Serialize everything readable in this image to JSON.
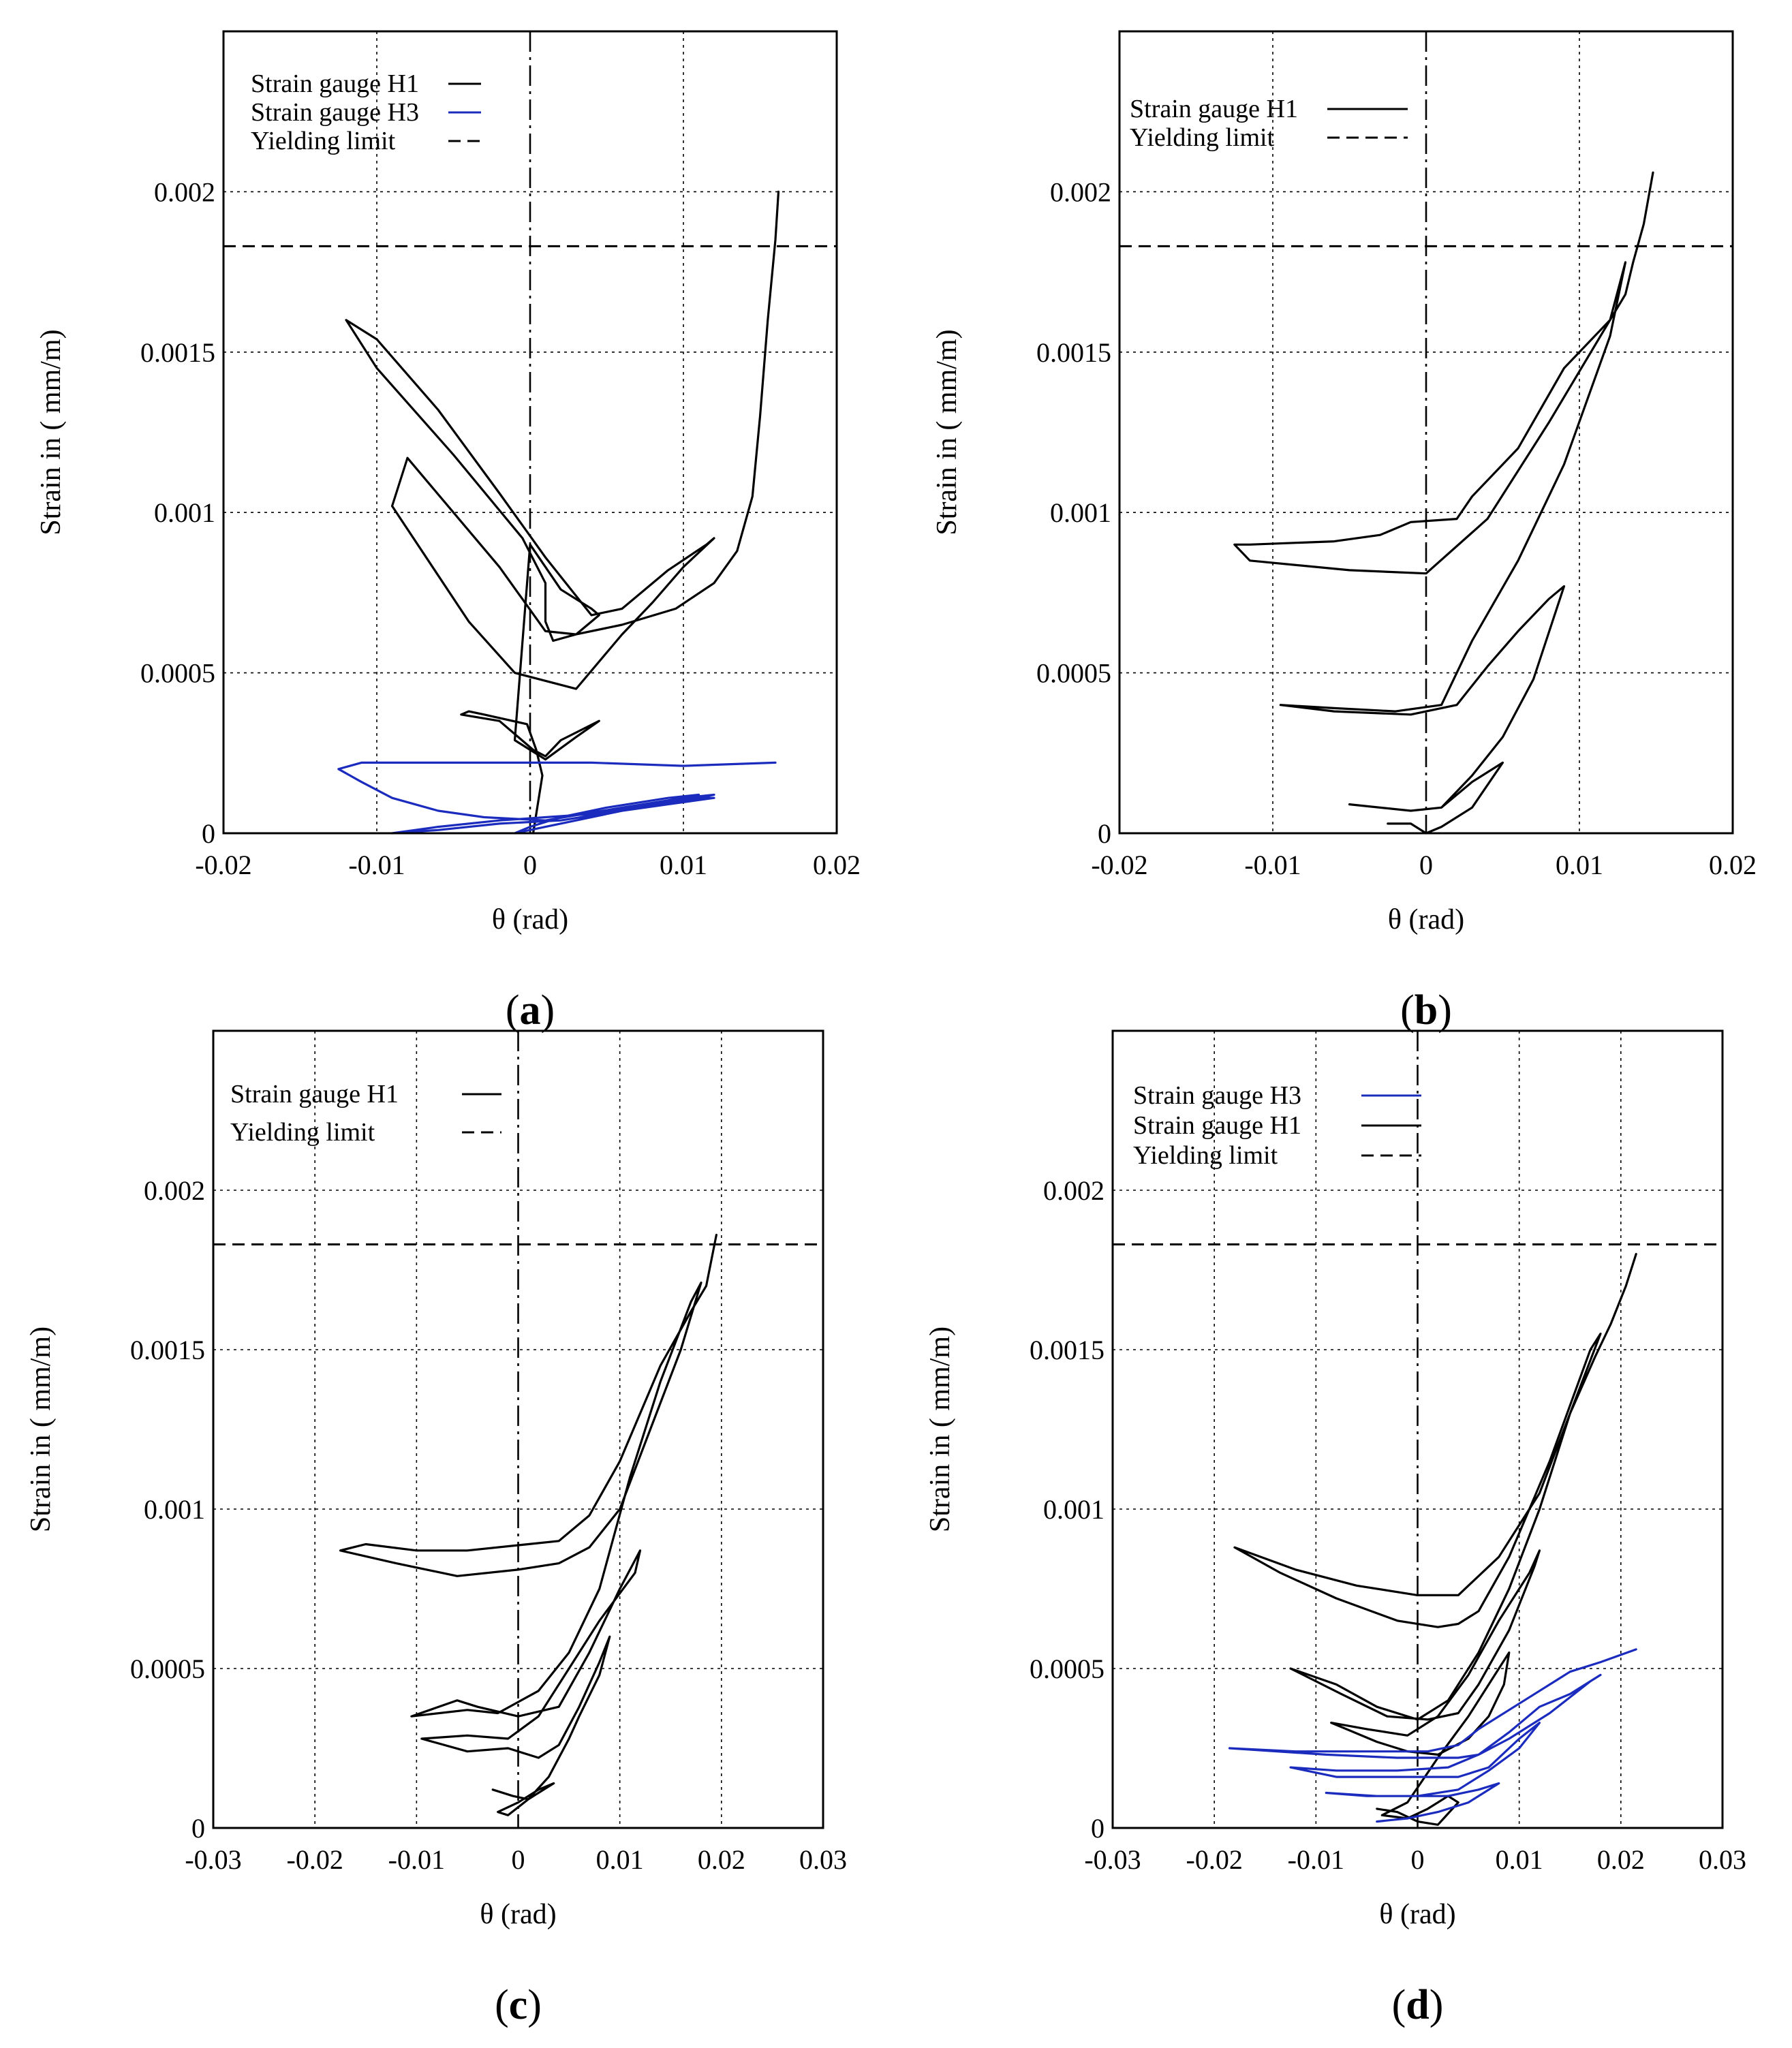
{
  "colors": {
    "gauge_H1": "#000000",
    "gauge_H3": "#1a2bbd"
  },
  "chart_data": [
    {
      "panel_label": "(a)",
      "label_letter": "a",
      "type": "line",
      "xlabel": "θ (rad)",
      "ylabel": "Strain in ( mm/m)",
      "xlim": [
        -0.02,
        0.02
      ],
      "ylim": [
        0,
        0.0025
      ],
      "xticks": [
        -0.02,
        -0.01,
        0,
        0.01,
        0.02
      ],
      "xtick_labels": [
        "-0.02",
        "-0.01",
        "0",
        "0.01",
        "0.02"
      ],
      "yticks": [
        0,
        0.0005,
        0.001,
        0.0015,
        0.002
      ],
      "ytick_labels": [
        "0",
        "0.0005",
        "0.001",
        "0.0015",
        "0.002"
      ],
      "grid": true,
      "yielding_limit": 0.00183,
      "legend": [
        {
          "label": "Strain gauge H1",
          "style": "solid",
          "series": "H1"
        },
        {
          "label": "Strain gauge H3",
          "style": "solid",
          "series": "H3"
        },
        {
          "label": "Yielding limit",
          "style": "dashed",
          "series": "yield"
        }
      ],
      "series": [
        {
          "name": "Strain gauge H1",
          "color_key": "gauge_H1",
          "x": [
            0.0002,
            0.0008,
            0.0004,
            -0.0002,
            -0.003,
            -0.004,
            -0.0045,
            -0.002,
            0.0002,
            0.001,
            0.002,
            0.0045,
            0.003,
            0.001,
            -0.001,
            0,
            0.001,
            0.002,
            0.004,
            0.0045,
            0.003,
            0.0015,
            0.001,
            0.001,
            -0.0005,
            -0.005,
            -0.01,
            -0.012,
            -0.01,
            -0.006,
            -0.002,
            0.001,
            0.004,
            0.006,
            0.009,
            0.0115,
            0.012,
            0.01,
            0.008,
            0.006,
            0.003,
            -0.001,
            -0.004,
            -0.009,
            -0.008,
            -0.005,
            -0.002,
            0.001,
            0.003,
            0.006,
            0.0095,
            0.012,
            0.0135,
            0.0145,
            0.015,
            0.0155,
            0.016,
            0.0162
          ],
          "y": [
            0.0,
            0.00018,
            0.00026,
            0.00034,
            0.00037,
            0.00038,
            0.00037,
            0.00035,
            0.00026,
            0.00024,
            0.00029,
            0.00035,
            0.0003,
            0.00023,
            0.00029,
            0.0009,
            0.00083,
            0.00076,
            0.0007,
            0.00068,
            0.00062,
            0.0006,
            0.00066,
            0.00078,
            0.00092,
            0.00118,
            0.00145,
            0.0016,
            0.00154,
            0.00132,
            0.00106,
            0.00086,
            0.00068,
            0.0007,
            0.00082,
            0.0009,
            0.00092,
            0.00083,
            0.00072,
            0.00062,
            0.00045,
            0.0005,
            0.00066,
            0.00102,
            0.00117,
            0.001,
            0.00083,
            0.00063,
            0.00062,
            0.00065,
            0.0007,
            0.00078,
            0.00088,
            0.00105,
            0.0013,
            0.0016,
            0.00185,
            0.002
          ]
        },
        {
          "name": "Strain gauge H3",
          "color_key": "gauge_H3",
          "x": [
            0.016,
            0.01,
            0.004,
            -0.002,
            -0.007,
            -0.011,
            -0.0125,
            -0.011,
            -0.009,
            -0.006,
            -0.003,
            0.001,
            0.006,
            0.01,
            0.012,
            0.011,
            0.008,
            0.004,
            0.001,
            -0.002,
            -0.006,
            -0.009,
            -0.006,
            -0.002,
            0.002,
            0.006,
            0.009,
            0.011,
            0.012,
            0.009,
            0.006,
            0.003,
            0.001,
            -0.001,
            0.0,
            0.002,
            0.005,
            0.009,
            0.011
          ],
          "y": [
            0.00022,
            0.00021,
            0.00022,
            0.00022,
            0.00022,
            0.00022,
            0.0002,
            0.00016,
            0.00011,
            7e-05,
            5e-05,
            4e-05,
            8e-05,
            0.00011,
            0.00012,
            0.00011,
            9e-05,
            6e-05,
            5e-05,
            4e-05,
            2e-05,
            0.0,
            1e-05,
            3e-05,
            4e-05,
            7e-05,
            0.0001,
            0.00011,
            0.00011,
            9e-05,
            7e-05,
            4e-05,
            2e-05,
            0.0,
            2e-05,
            5e-05,
            8e-05,
            0.00011,
            0.00012
          ]
        }
      ]
    },
    {
      "panel_label": "(b)",
      "label_letter": "b",
      "type": "line",
      "xlabel": "θ (rad)",
      "ylabel": "Strain in ( mm/m)",
      "xlim": [
        -0.02,
        0.02
      ],
      "ylim": [
        0,
        0.0025
      ],
      "xticks": [
        -0.02,
        -0.01,
        0,
        0.01,
        0.02
      ],
      "xtick_labels": [
        "-0.02",
        "-0.01",
        "0",
        "0.01",
        "0.02"
      ],
      "yticks": [
        0,
        0.0005,
        0.001,
        0.0015,
        0.002
      ],
      "ytick_labels": [
        "0",
        "0.0005",
        "0.001",
        "0.0015",
        "0.002"
      ],
      "grid": true,
      "yielding_limit": 0.00183,
      "legend": [
        {
          "label": "Strain gauge H1",
          "style": "solid",
          "series": "H1"
        },
        {
          "label": "Yielding limit",
          "style": "dashed",
          "series": "yield"
        }
      ],
      "series": [
        {
          "name": "Strain gauge H1",
          "color_key": "gauge_H1",
          "x": [
            -0.0025,
            -0.001,
            0.0,
            0.001,
            0.003,
            0.005,
            0.003,
            0.001,
            -0.001,
            -0.005,
            -0.001,
            0.001,
            0.003,
            0.005,
            0.007,
            0.009,
            0.008,
            0.006,
            0.004,
            0.002,
            -0.001,
            -0.006,
            -0.0095,
            -0.006,
            -0.002,
            0.001,
            0.003,
            0.006,
            0.009,
            0.012,
            0.013,
            0.012,
            0.008,
            0.004,
            0.0,
            -0.005,
            -0.0115,
            -0.0125,
            -0.0115,
            -0.006,
            -0.003,
            -0.001,
            0.002,
            0.003,
            0.006,
            0.009,
            0.012,
            0.013,
            0.0135,
            0.0142,
            0.0148
          ],
          "y": [
            3e-05,
            3e-05,
            0.0,
            2e-05,
            8e-05,
            0.00022,
            0.00016,
            8e-05,
            7e-05,
            9e-05,
            7e-05,
            8e-05,
            0.00018,
            0.0003,
            0.00048,
            0.00077,
            0.00073,
            0.00063,
            0.00052,
            0.0004,
            0.00037,
            0.00038,
            0.0004,
            0.00039,
            0.00038,
            0.0004,
            0.0006,
            0.00085,
            0.00115,
            0.00155,
            0.00178,
            0.0016,
            0.00128,
            0.00098,
            0.00081,
            0.00082,
            0.00085,
            0.0009,
            0.0009,
            0.00091,
            0.00093,
            0.00097,
            0.00098,
            0.00105,
            0.0012,
            0.00145,
            0.0016,
            0.00168,
            0.00178,
            0.0019,
            0.00206
          ]
        }
      ]
    },
    {
      "panel_label": "(c)",
      "label_letter": "c",
      "type": "line",
      "xlabel": "θ (rad)",
      "ylabel": "Strain in ( mm/m)",
      "xlim": [
        -0.03,
        0.03
      ],
      "ylim": [
        0,
        0.0025
      ],
      "xticks": [
        -0.03,
        -0.02,
        -0.01,
        0,
        0.01,
        0.02,
        0.03
      ],
      "xtick_labels": [
        "-0.03",
        "-0.02",
        "-0.01",
        "0",
        "0.01",
        "0.02",
        "0.03"
      ],
      "yticks": [
        0,
        0.0005,
        0.001,
        0.0015,
        0.002
      ],
      "ytick_labels": [
        "0",
        "0.0005",
        "0.001",
        "0.0015",
        "0.002"
      ],
      "grid": true,
      "yielding_limit": 0.00183,
      "legend": [
        {
          "label": "Strain gauge H1",
          "style": "solid",
          "series": "H1"
        },
        {
          "label": "Yielding limit",
          "style": "dashed",
          "series": "yield"
        }
      ],
      "series": [
        {
          "name": "Strain gauge H1",
          "color_key": "gauge_H1",
          "x": [
            -0.0025,
            -0.0005,
            0.001,
            0.002,
            0.0035,
            0.002,
            0.0,
            -0.002,
            -0.001,
            0.001,
            0.003,
            0.005,
            0.006,
            0.008,
            0.009,
            0.008,
            0.006,
            0.004,
            0.002,
            -0.001,
            -0.005,
            -0.0095,
            -0.005,
            -0.001,
            0.002,
            0.005,
            0.008,
            0.0115,
            0.012,
            0.01,
            0.007,
            0.004,
            0.0,
            -0.004,
            -0.006,
            -0.0105,
            -0.005,
            -0.002,
            0.002,
            0.005,
            0.008,
            0.011,
            0.014,
            0.017,
            0.018,
            0.016,
            0.013,
            0.01,
            0.007,
            0.004,
            0.0,
            -0.006,
            -0.012,
            -0.0175,
            -0.015,
            -0.01,
            -0.005,
            0.001,
            0.004,
            0.007,
            0.01,
            0.014,
            0.017,
            0.0185,
            0.0195
          ],
          "y": [
            0.00012,
            0.0001,
            9e-05,
            0.00011,
            0.00014,
            0.00012,
            8e-05,
            5e-05,
            4e-05,
            9e-05,
            0.00016,
            0.00028,
            0.00035,
            0.00048,
            0.0006,
            0.00052,
            0.00038,
            0.00026,
            0.00022,
            0.00025,
            0.00024,
            0.00028,
            0.00029,
            0.00028,
            0.00035,
            0.0005,
            0.00065,
            0.0008,
            0.00087,
            0.00075,
            0.00055,
            0.00038,
            0.00035,
            0.00038,
            0.0004,
            0.00035,
            0.00037,
            0.00036,
            0.00043,
            0.00055,
            0.00075,
            0.0011,
            0.0014,
            0.00165,
            0.00171,
            0.0015,
            0.00125,
            0.001,
            0.00088,
            0.00083,
            0.00081,
            0.00079,
            0.00083,
            0.00087,
            0.00089,
            0.00087,
            0.00087,
            0.00089,
            0.0009,
            0.00098,
            0.00115,
            0.00145,
            0.00162,
            0.0017,
            0.00186
          ]
        }
      ]
    },
    {
      "panel_label": "(d)",
      "label_letter": "d",
      "type": "line",
      "xlabel": "θ (rad)",
      "ylabel": "Strain in ( mm/m)",
      "xlim": [
        -0.03,
        0.03
      ],
      "ylim": [
        0,
        0.0025
      ],
      "xticks": [
        -0.03,
        -0.02,
        -0.01,
        0,
        0.01,
        0.02,
        0.03
      ],
      "xtick_labels": [
        "-0.03",
        "-0.02",
        "-0.01",
        "0",
        "0.01",
        "0.02",
        "0.03"
      ],
      "yticks": [
        0,
        0.0005,
        0.001,
        0.0015,
        0.002
      ],
      "ytick_labels": [
        "0",
        "0.0005",
        "0.001",
        "0.0015",
        "0.002"
      ],
      "grid": true,
      "yielding_limit": 0.00183,
      "legend": [
        {
          "label": "Strain gauge H3",
          "style": "solid",
          "series": "H3"
        },
        {
          "label": "Strain gauge H1",
          "style": "solid",
          "series": "H1"
        },
        {
          "label": "Yielding limit",
          "style": "dashed",
          "series": "yield"
        }
      ],
      "series": [
        {
          "name": "Strain gauge H1",
          "color_key": "gauge_H1",
          "x": [
            -0.004,
            -0.002,
            0.0,
            0.002,
            0.004,
            0.003,
            0.001,
            -0.001,
            -0.0035,
            -0.001,
            0.002,
            0.005,
            0.008,
            0.009,
            0.0085,
            0.007,
            0.005,
            0.002,
            -0.001,
            -0.004,
            -0.0085,
            -0.005,
            -0.001,
            0.002,
            0.005,
            0.008,
            0.011,
            0.012,
            0.0115,
            0.009,
            0.006,
            0.004,
            0.001,
            -0.003,
            -0.0075,
            -0.0125,
            -0.008,
            -0.004,
            0.0,
            0.003,
            0.006,
            0.009,
            0.012,
            0.015,
            0.018,
            0.017,
            0.013,
            0.009,
            0.006,
            0.004,
            0.002,
            -0.002,
            -0.008,
            -0.0135,
            -0.018,
            -0.012,
            -0.006,
            0.0,
            0.004,
            0.008,
            0.012,
            0.015,
            0.0175,
            0.019,
            0.0205,
            0.0215
          ],
          "y": [
            6e-05,
            5e-05,
            2e-05,
            1e-05,
            8e-05,
            0.0001,
            6e-05,
            3e-05,
            4e-05,
            8e-05,
            0.00022,
            0.00035,
            0.0005,
            0.00055,
            0.00045,
            0.00035,
            0.00028,
            0.00023,
            0.00024,
            0.00027,
            0.00033,
            0.00031,
            0.00029,
            0.00035,
            0.00048,
            0.00065,
            0.0008,
            0.00087,
            0.00082,
            0.00062,
            0.00045,
            0.00036,
            0.00034,
            0.00035,
            0.00042,
            0.0005,
            0.00045,
            0.00038,
            0.00034,
            0.0004,
            0.00055,
            0.00075,
            0.001,
            0.0013,
            0.00155,
            0.0015,
            0.00115,
            0.00085,
            0.00068,
            0.00064,
            0.00063,
            0.00065,
            0.00072,
            0.0008,
            0.00088,
            0.00081,
            0.00076,
            0.00073,
            0.00073,
            0.00085,
            0.00105,
            0.0013,
            0.00148,
            0.00158,
            0.0017,
            0.0018
          ]
        },
        {
          "name": "Strain gauge H3",
          "color_key": "gauge_H3",
          "x": [
            -0.004,
            -0.001,
            0.002,
            0.005,
            0.008,
            0.006,
            0.003,
            0.0,
            -0.004,
            -0.009,
            -0.005,
            0.0,
            0.004,
            0.007,
            0.01,
            0.012,
            0.01,
            0.007,
            0.004,
            -0.002,
            -0.008,
            -0.0125,
            -0.008,
            -0.002,
            0.003,
            0.006,
            0.009,
            0.012,
            0.015,
            0.018,
            0.017,
            0.013,
            0.009,
            0.006,
            0.004,
            -0.002,
            -0.009,
            -0.0185,
            -0.012,
            -0.005,
            0.001,
            0.004,
            0.006,
            0.009,
            0.012,
            0.015,
            0.018,
            0.0215
          ],
          "y": [
            2e-05,
            3e-05,
            5e-05,
            8e-05,
            0.00014,
            0.00012,
            0.0001,
            0.0001,
            0.0001,
            0.00011,
            0.0001,
            0.0001,
            0.00012,
            0.00018,
            0.00025,
            0.00033,
            0.00028,
            0.00019,
            0.00016,
            0.00016,
            0.00016,
            0.00019,
            0.00018,
            0.00018,
            0.00019,
            0.00023,
            0.0003,
            0.00038,
            0.00042,
            0.00048,
            0.00046,
            0.00036,
            0.00028,
            0.00023,
            0.00022,
            0.00022,
            0.00023,
            0.00025,
            0.00024,
            0.00024,
            0.00024,
            0.00026,
            0.00031,
            0.00037,
            0.00043,
            0.00049,
            0.00052,
            0.00056
          ]
        }
      ]
    }
  ]
}
